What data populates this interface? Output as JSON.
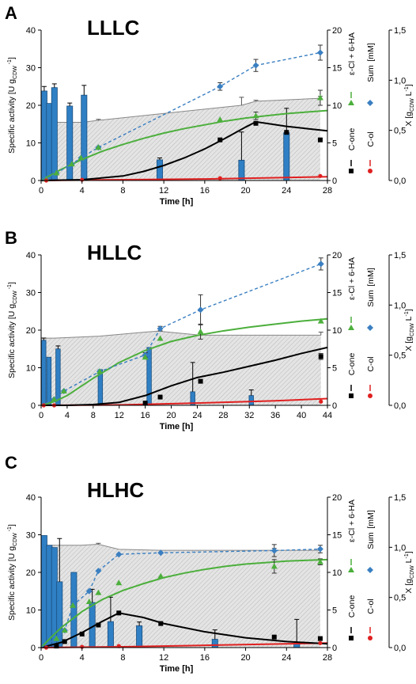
{
  "chart_data": [
    {
      "type": "bar+line+scatter",
      "panel_letter": "A",
      "title": "LLLC",
      "xlabel": "Time [h]",
      "ylabel_left": "Specific activity [U g",
      "ylabel_left_sub": "CDW",
      "ylabel_left_sup": "-1",
      "ylabel_left_end": "]",
      "ylabel_mid": "[mM]",
      "ylabel_right": "X [g",
      "ylabel_right_sub": "CDW",
      "ylabel_right_end": " L",
      "ylabel_right_sup": "-1",
      "ylabel_right_close": "]",
      "xticks": [
        0,
        4,
        8,
        12,
        16,
        20,
        24,
        28
      ],
      "xlim": [
        0,
        28
      ],
      "yticks_left": [
        0,
        10,
        20,
        30,
        40
      ],
      "ylim_left": [
        0,
        40
      ],
      "yticks_mid": [
        0,
        5,
        10,
        15,
        20
      ],
      "ylim_mid": [
        0,
        20
      ],
      "yticks_right_labels": [
        "0,0",
        "0,5",
        "1,0",
        "1,5"
      ],
      "yticks_right_values": [
        0,
        0.5,
        1.0,
        1.5
      ],
      "ylim_right": [
        0,
        1.5
      ],
      "legend": [
        {
          "label": "C-one",
          "marker": "square",
          "color": "#000000"
        },
        {
          "label": "ε-Cl + 6-HA",
          "marker": "triangle",
          "color": "#4caf3c"
        },
        {
          "label": "Sum",
          "marker": "diamond",
          "color": "#3a7fc1"
        },
        {
          "label": "C-ol",
          "marker": "circle",
          "color": "#e02020"
        }
      ],
      "bars_specific_activity": {
        "x": [
          0.3,
          0.8,
          1.3,
          2.8,
          4.2,
          11.6,
          19.6,
          24.0
        ],
        "values": [
          23.8,
          20.5,
          24.7,
          19.8,
          22.7,
          5.5,
          5.4,
          12.7
        ],
        "errors": [
          1.2,
          0,
          1.0,
          0.8,
          2.6,
          0.5,
          7.5,
          6.5
        ]
      },
      "biomass_X": {
        "x": [
          0,
          4,
          5.6,
          19.6,
          21,
          27.3
        ],
        "values": [
          0.58,
          0.58,
          0.6,
          0.75,
          0.79,
          0.82
        ],
        "errors": [
          0,
          0,
          0.01,
          0.08,
          0.01,
          0.02
        ]
      },
      "sum_mM": {
        "x": [
          0.5,
          1.5,
          3,
          3.9,
          5.6,
          17.5,
          21,
          27.3
        ],
        "values": [
          0.2,
          1.0,
          2.2,
          3.0,
          4.4,
          12.5,
          15.3,
          17.0
        ],
        "errors": [
          0,
          0,
          0,
          0,
          0,
          0.5,
          0.8,
          1.0
        ]
      },
      "ecl_6ha_mM": {
        "x": [
          0.5,
          1.5,
          3,
          3.9,
          5.6,
          17.5,
          21,
          27.3
        ],
        "values": [
          0.2,
          1.0,
          2.2,
          3.0,
          4.4,
          8.1,
          8.6,
          11.0
        ],
        "errors": [
          0,
          0,
          0,
          0,
          0,
          0,
          0.5,
          1.0
        ],
        "fit_x": [
          0,
          2,
          4,
          6,
          8,
          10,
          12,
          14,
          16,
          18,
          20,
          22,
          24,
          26,
          28
        ],
        "fit_y": [
          0,
          1.5,
          2.8,
          3.9,
          4.8,
          5.6,
          6.3,
          6.9,
          7.4,
          7.9,
          8.3,
          8.6,
          8.9,
          9.1,
          9.3
        ]
      },
      "cone_mM": {
        "x": [
          17.5,
          21,
          24,
          27.3
        ],
        "values": [
          5.4,
          7.6,
          6.4,
          5.4
        ],
        "fit_x": [
          0,
          4,
          8,
          10,
          12,
          14,
          16,
          18,
          20,
          21,
          22,
          24,
          26,
          28
        ],
        "fit_y": [
          0,
          0.1,
          0.6,
          1.2,
          2.0,
          3.0,
          4.2,
          5.6,
          7.1,
          7.8,
          7.6,
          7.2,
          6.9,
          6.6
        ]
      },
      "col_mM": {
        "x": [
          0.5,
          4,
          17.5,
          27.3
        ],
        "values": [
          0,
          0.1,
          0.3,
          0.6
        ],
        "fit_x": [
          0,
          8,
          16,
          24,
          28
        ],
        "fit_y": [
          0,
          0.1,
          0.2,
          0.4,
          0.5
        ]
      }
    },
    {
      "type": "bar+line+scatter",
      "panel_letter": "B",
      "title": "HLLC",
      "xlabel": "Time [h]",
      "ylabel_left": "Specific activity [U g",
      "ylabel_left_sub": "CDW",
      "ylabel_left_sup": "-1",
      "ylabel_left_end": "]",
      "ylabel_mid": "[mM]",
      "ylabel_right": "X [g",
      "ylabel_right_sub": "CDW",
      "ylabel_right_end": " L",
      "ylabel_right_sup": "-1",
      "ylabel_right_close": "]",
      "xticks": [
        0,
        4,
        8,
        12,
        16,
        20,
        24,
        28,
        32,
        36,
        40,
        44
      ],
      "xlim": [
        0,
        44
      ],
      "yticks_left": [
        0,
        10,
        20,
        30,
        40
      ],
      "ylim_left": [
        0,
        40
      ],
      "yticks_mid": [
        0,
        5,
        10,
        15,
        20
      ],
      "ylim_mid": [
        0,
        20
      ],
      "yticks_right_labels": [
        "0,0",
        "0,5",
        "1,0",
        "1,5"
      ],
      "yticks_right_values": [
        0,
        0.5,
        1.0,
        1.5
      ],
      "ylim_right": [
        0,
        1.5
      ],
      "legend": [
        {
          "label": "C-one",
          "marker": "square",
          "color": "#000000"
        },
        {
          "label": "ε-Cl + 6-HA",
          "marker": "triangle",
          "color": "#4caf3c"
        },
        {
          "label": "Sum",
          "marker": "diamond",
          "color": "#3a7fc1"
        },
        {
          "label": "C-ol",
          "marker": "circle",
          "color": "#e02020"
        }
      ],
      "bars_specific_activity": {
        "x": [
          0.4,
          1.2,
          2.6,
          9.1,
          16.6,
          23.3,
          32.3
        ],
        "values": [
          17.3,
          12.8,
          15.0,
          9.5,
          15.4,
          3.6,
          2.6
        ],
        "errors": [
          0.6,
          0,
          0.8,
          0,
          0,
          7.8,
          1.5
        ]
      },
      "biomass_X": {
        "x": [
          0,
          2,
          9,
          16,
          18,
          24.5,
          43
        ],
        "values": [
          0.67,
          0.67,
          0.69,
          0.73,
          0.74,
          0.7,
          0.7
        ],
        "errors": [
          0,
          0,
          0,
          0,
          0,
          0,
          0.03
        ]
      },
      "sum_mM": {
        "x": [
          2,
          3.5,
          9,
          16,
          18.3,
          24.5,
          43
        ],
        "values": [
          0.8,
          1.9,
          4.5,
          6.7,
          10.2,
          12.7,
          18.8
        ],
        "errors": [
          0,
          0,
          0,
          0.3,
          0.3,
          2.0,
          0.8
        ]
      },
      "ecl_6ha_mM": {
        "x": [
          2,
          3.5,
          9,
          16,
          18.3,
          24.5,
          43
        ],
        "values": [
          0.8,
          1.9,
          4.5,
          6.4,
          8.9,
          9.8,
          11.2
        ],
        "errors": [
          0,
          0,
          0,
          0,
          0,
          1.0,
          0
        ],
        "fit_x": [
          0,
          2,
          4,
          8,
          12,
          16,
          20,
          24,
          28,
          32,
          36,
          40,
          44
        ],
        "fit_y": [
          0,
          0.5,
          1.3,
          3.6,
          5.7,
          7.3,
          8.5,
          9.3,
          9.9,
          10.4,
          10.8,
          11.2,
          11.5
        ],
        "fit_start": 1.5
      },
      "cone_mM": {
        "x": [
          16,
          18.3,
          24.5,
          43
        ],
        "values": [
          0.3,
          1.1,
          3.2,
          6.5
        ],
        "errors": [
          0,
          0,
          0,
          0.4
        ],
        "fit_x": [
          0,
          4,
          8,
          12,
          16,
          20,
          24,
          28,
          32,
          36,
          40,
          44
        ],
        "fit_y": [
          0,
          0,
          0.1,
          0.4,
          1.3,
          2.6,
          3.7,
          4.4,
          5.2,
          6.0,
          6.9,
          7.7
        ]
      },
      "col_mM": {
        "x": [
          0.4,
          2,
          43
        ],
        "values": [
          0,
          0,
          0.5
        ],
        "fit_x": [
          0,
          12,
          24,
          36,
          44
        ],
        "fit_y": [
          0,
          0.05,
          0.3,
          0.6,
          0.9
        ]
      }
    },
    {
      "type": "bar+line+scatter",
      "panel_letter": "C",
      "title": "HLHC",
      "xlabel": "Time [h]",
      "ylabel_left": "Specific activity [U g",
      "ylabel_left_sub": "CDW",
      "ylabel_left_sup": "-1",
      "ylabel_left_end": "]",
      "ylabel_mid": "[mM]",
      "ylabel_right": "X [g",
      "ylabel_right_sub": "CDW",
      "ylabel_right_end": " L",
      "ylabel_right_sup": "-1",
      "ylabel_right_close": "]",
      "xticks": [
        0,
        4,
        8,
        12,
        16,
        20,
        24,
        28
      ],
      "xlim": [
        0,
        28
      ],
      "yticks_left": [
        0,
        10,
        20,
        30,
        40
      ],
      "ylim_left": [
        0,
        40
      ],
      "yticks_mid": [
        0,
        5,
        10,
        15,
        20
      ],
      "ylim_mid": [
        0,
        20
      ],
      "yticks_right_labels": [
        "0,0",
        "0,5",
        "1,0",
        "1,5"
      ],
      "yticks_right_values": [
        0,
        0.5,
        1.0,
        1.5
      ],
      "ylim_right": [
        0,
        1.5
      ],
      "legend": [
        {
          "label": "C-one",
          "marker": "square",
          "color": "#000000"
        },
        {
          "label": "ε-Cl + 6-HA",
          "marker": "triangle",
          "color": "#4caf3c"
        },
        {
          "label": "Sum",
          "marker": "diamond",
          "color": "#3a7fc1"
        },
        {
          "label": "C-ol",
          "marker": "circle",
          "color": "#e02020"
        }
      ],
      "bars_specific_activity": {
        "x": [
          0.3,
          0.8,
          1.3,
          1.8,
          3.2,
          5.0,
          6.8,
          9.6,
          17.0,
          25.0
        ],
        "values": [
          29.8,
          27.2,
          26.6,
          17.5,
          20.0,
          12.0,
          6.9,
          5.8,
          2.2,
          1.0
        ],
        "errors": [
          0,
          0,
          0,
          11.5,
          0,
          3.5,
          6.5,
          1.0,
          2.5,
          6.5
        ]
      },
      "biomass_X": {
        "x": [
          0,
          3.9,
          5.6,
          7.6,
          11.7,
          22.8,
          27.3
        ],
        "values": [
          1.02,
          1.02,
          1.03,
          0.98,
          0.97,
          0.97,
          0.97
        ],
        "errors": [
          0,
          0,
          0.01,
          0,
          0,
          0.02,
          0.01
        ]
      },
      "sum_mM": {
        "x": [
          1.5,
          2.3,
          3.1,
          4.7,
          5.6,
          7.6,
          11.7,
          22.8,
          27.3
        ],
        "values": [
          1.2,
          2.3,
          5.6,
          7.5,
          10.2,
          12.4,
          12.6,
          12.9,
          13.1
        ],
        "errors": [
          0,
          0,
          0,
          0,
          0,
          0,
          0,
          0.8,
          0.5
        ]
      },
      "ecl_6ha_mM": {
        "x": [
          1.5,
          2.3,
          3.1,
          4.7,
          5.6,
          7.6,
          11.7,
          22.8,
          27.3
        ],
        "values": [
          1.2,
          2.3,
          5.6,
          6.1,
          7.3,
          8.6,
          9.5,
          10.8,
          11.4
        ],
        "errors": [
          0,
          0,
          0,
          0,
          0,
          0,
          0,
          0.9,
          0.4
        ],
        "fit_x": [
          0,
          1,
          2,
          4,
          6,
          8,
          10,
          12,
          14,
          16,
          18,
          20,
          22,
          24,
          26,
          28
        ],
        "fit_y": [
          0,
          1.4,
          2.7,
          4.8,
          6.4,
          7.6,
          8.5,
          9.3,
          9.9,
          10.4,
          10.8,
          11.1,
          11.3,
          11.5,
          11.6,
          11.7
        ]
      },
      "cone_mM": {
        "x": [
          1.5,
          2.3,
          4.0,
          5.6,
          7.6,
          11.7,
          22.8,
          27.3
        ],
        "values": [
          0.2,
          0.8,
          1.8,
          3.0,
          4.6,
          3.2,
          1.4,
          1.2
        ],
        "fit_x": [
          0,
          2,
          4,
          6,
          7.6,
          10,
          12,
          16,
          20,
          24,
          28
        ],
        "fit_y": [
          0,
          0.7,
          2.0,
          3.5,
          4.6,
          4.0,
          3.2,
          2.1,
          1.3,
          0.8,
          0.5
        ]
      },
      "col_mM": {
        "x": [
          0.5,
          4,
          7.6,
          27.3
        ],
        "values": [
          0,
          0.1,
          0.2,
          0.6
        ],
        "fit_x": [
          0,
          8,
          16,
          24,
          28
        ],
        "fit_y": [
          0,
          0.1,
          0.3,
          0.5,
          0.6
        ]
      }
    }
  ],
  "colors": {
    "bar_fill": "#2f7fc4",
    "bar_edge": "#1a4f7f",
    "biomass_fill": "#d9d9d9",
    "biomass_line": "#888888",
    "sum": "#3a7fc1",
    "ecl_6ha": "#4caf3c",
    "cone": "#000000",
    "col": "#e02020"
  }
}
